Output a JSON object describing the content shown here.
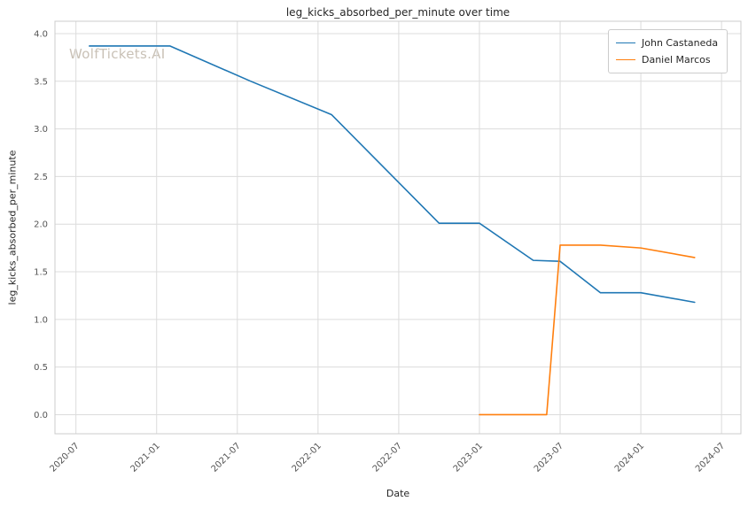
{
  "chart_data": {
    "type": "line",
    "title": "leg_kicks_absorbed_per_minute over time",
    "xlabel": "Date",
    "ylabel": "leg_kicks_absorbed_per_minute",
    "watermark": "WolfTickets.AI",
    "grid": true,
    "legend_position": "upper right",
    "x_ticks": [
      "2020-07",
      "2021-01",
      "2021-07",
      "2022-01",
      "2022-07",
      "2023-01",
      "2023-07",
      "2024-01",
      "2024-07"
    ],
    "y_ticks": [
      "0.0",
      "0.5",
      "1.0",
      "1.5",
      "2.0",
      "2.5",
      "3.0",
      "3.5",
      "4.0"
    ],
    "xlim": [
      2020.37,
      2024.62
    ],
    "ylim": [
      -0.2,
      4.13
    ],
    "series": [
      {
        "name": "John Castaneda",
        "color": "#1f77b4",
        "points": [
          [
            "2020-08",
            3.87
          ],
          [
            "2021-02",
            3.87
          ],
          [
            "2021-08",
            3.5
          ],
          [
            "2022-02",
            3.15
          ],
          [
            "2022-10",
            2.01
          ],
          [
            "2023-01",
            2.01
          ],
          [
            "2023-05",
            1.62
          ],
          [
            "2023-07",
            1.61
          ],
          [
            "2023-10",
            1.28
          ],
          [
            "2024-01",
            1.28
          ],
          [
            "2024-05",
            1.18
          ]
        ]
      },
      {
        "name": "Daniel Marcos",
        "color": "#ff7f0e",
        "points": [
          [
            "2023-01",
            0.0
          ],
          [
            "2023-06",
            0.0
          ],
          [
            "2023-07",
            1.78
          ],
          [
            "2023-10",
            1.78
          ],
          [
            "2024-01",
            1.75
          ],
          [
            "2024-05",
            1.65
          ]
        ]
      }
    ],
    "colors": {
      "grid": "#dcdcdc",
      "spine": "#cccccc",
      "tick_text": "#555555"
    }
  }
}
